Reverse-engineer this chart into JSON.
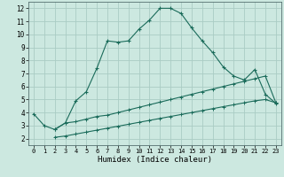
{
  "xlabel": "Humidex (Indice chaleur)",
  "background_color": "#cce8e0",
  "grid_color": "#aaccc4",
  "line_color": "#1a6b5a",
  "xlim": [
    -0.5,
    23.5
  ],
  "ylim": [
    1.5,
    12.5
  ],
  "xticks": [
    0,
    1,
    2,
    3,
    4,
    5,
    6,
    7,
    8,
    9,
    10,
    11,
    12,
    13,
    14,
    15,
    16,
    17,
    18,
    19,
    20,
    21,
    22,
    23
  ],
  "yticks": [
    2,
    3,
    4,
    5,
    6,
    7,
    8,
    9,
    10,
    11,
    12
  ],
  "curve1_x": [
    0,
    1,
    2,
    3,
    4,
    5,
    6,
    7,
    8,
    9,
    10,
    11,
    12,
    13,
    14,
    15,
    16,
    17,
    18,
    19,
    20,
    21,
    22,
    23
  ],
  "curve1_y": [
    3.9,
    3.0,
    2.7,
    3.2,
    4.9,
    5.6,
    7.4,
    9.5,
    9.4,
    9.5,
    10.4,
    11.1,
    12.0,
    12.0,
    11.6,
    10.5,
    9.5,
    8.6,
    7.5,
    6.8,
    6.5,
    7.3,
    5.4,
    4.7
  ],
  "curve2_x": [
    2,
    3,
    4,
    5,
    6,
    7,
    8,
    9,
    10,
    11,
    12,
    13,
    14,
    15,
    16,
    17,
    18,
    19,
    20,
    21,
    22,
    23
  ],
  "curve2_y": [
    2.7,
    3.2,
    3.3,
    3.5,
    3.7,
    3.8,
    4.0,
    4.2,
    4.4,
    4.6,
    4.8,
    5.0,
    5.2,
    5.4,
    5.6,
    5.8,
    6.0,
    6.2,
    6.4,
    6.6,
    6.8,
    4.75
  ],
  "curve3_x": [
    2,
    3,
    4,
    5,
    6,
    7,
    8,
    9,
    10,
    11,
    12,
    13,
    14,
    15,
    16,
    17,
    18,
    19,
    20,
    21,
    22,
    23
  ],
  "curve3_y": [
    2.1,
    2.2,
    2.35,
    2.5,
    2.65,
    2.8,
    2.95,
    3.1,
    3.25,
    3.4,
    3.55,
    3.7,
    3.85,
    4.0,
    4.15,
    4.3,
    4.45,
    4.6,
    4.75,
    4.9,
    5.0,
    4.75
  ]
}
